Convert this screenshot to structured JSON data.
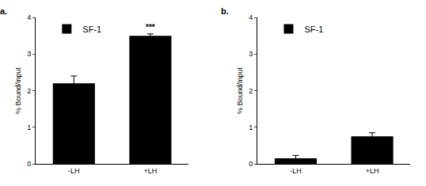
{
  "chart_data": [
    {
      "type": "bar",
      "title": "a.",
      "y_label": "% Bound/Input",
      "categories": [
        "-LH",
        "+LH"
      ],
      "series": [
        {
          "name": "SF-1",
          "color": "#000000",
          "values": [
            2.2,
            3.5
          ],
          "errors": [
            0.2,
            0.05
          ]
        }
      ],
      "annotations": [
        {
          "category": "+LH",
          "text": "***"
        }
      ],
      "ylim": [
        0,
        4
      ],
      "yticks": [
        0,
        1,
        2,
        3,
        4
      ],
      "grid": false,
      "legend": "top-left"
    },
    {
      "type": "bar",
      "title": "b.",
      "y_label": "% Bound/Input",
      "categories": [
        "-LH",
        "+LH"
      ],
      "series": [
        {
          "name": "SF-1",
          "color": "#000000",
          "values": [
            0.15,
            0.75
          ],
          "errors": [
            0.08,
            0.1
          ]
        }
      ],
      "ylim": [
        0,
        4
      ],
      "yticks": [
        0,
        1,
        2,
        3,
        4
      ],
      "grid": false,
      "legend": "top-left"
    }
  ]
}
